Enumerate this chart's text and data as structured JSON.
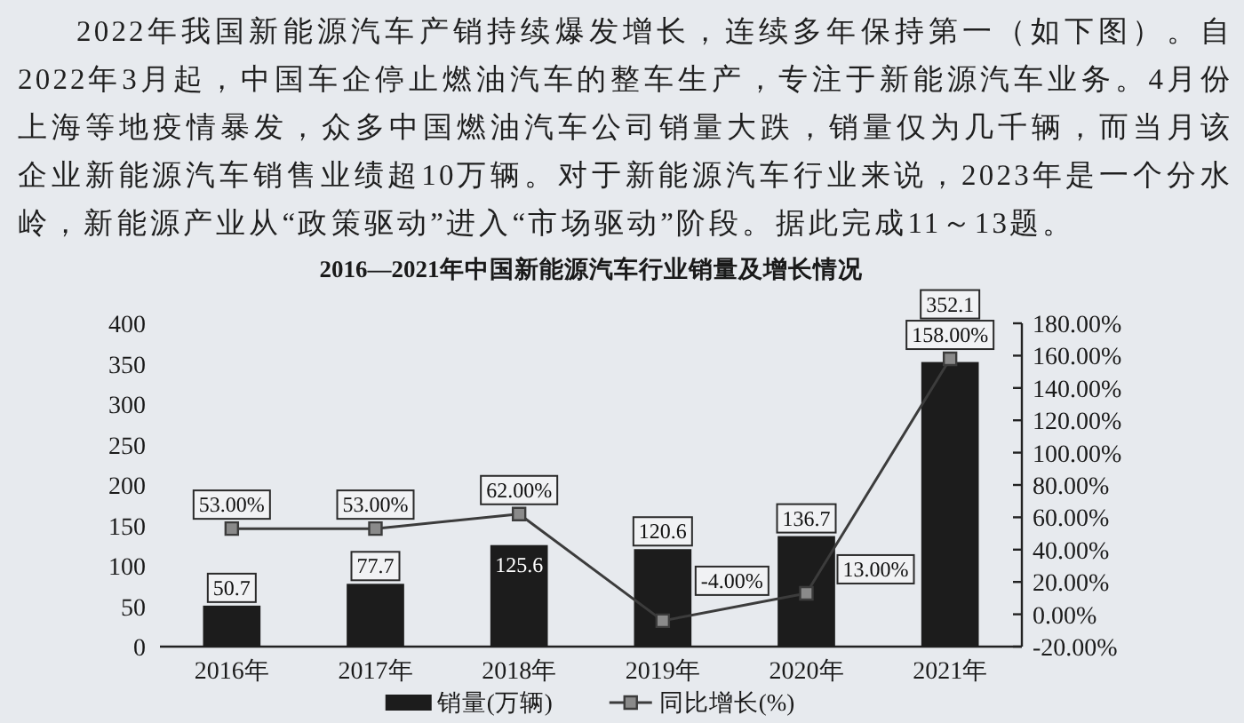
{
  "chart_data": {
    "type": "bar",
    "title": "2016—2021年中国新能源汽车行业销量及增长情况",
    "annotations": [
      "2022年我国新能源汽车产销持续爆发增长，连续多年保持第一（如下图）。自2022年3月起，中国车企停止燃油汽车的整车生产，专注于新能源汽车业务。4月份上海等地疫情暴发，众多中国燃油汽车公司销量大跌，销量仅为几千辆，而当月该企业新能源汽车销售业绩超10万辆。对于新能源汽车行业来说，2023年是一个分水岭，新能源产业从“政策驱动”进入“市场驱动”阶段。据此完成11～13题。"
    ],
    "categories": [
      "2016年",
      "2017年",
      "2018年",
      "2019年",
      "2020年",
      "2021年"
    ],
    "series": [
      {
        "name": "销量(万辆)",
        "type": "bar",
        "color": "#1c1c1c",
        "values": [
          50.7,
          77.7,
          125.6,
          120.6,
          136.7,
          352.1
        ],
        "value_labels": [
          "50.7",
          "77.7",
          "125.6",
          "120.6",
          "136.7",
          "352.1"
        ]
      },
      {
        "name": "同比增长(%)",
        "type": "line",
        "axis": "y2",
        "color": "#3c3c3c",
        "values": [
          53,
          53,
          62,
          -4,
          13,
          158
        ],
        "value_labels": [
          "53.00%",
          "53.00%",
          "62.00%",
          "-4.00%",
          "13.00%",
          "158.00%"
        ]
      }
    ],
    "ylim": [
      0,
      400
    ],
    "yticks": [
      0,
      50,
      100,
      150,
      200,
      250,
      300,
      350,
      400
    ],
    "y2lim": [
      -20,
      180
    ],
    "y2ticks": [
      {
        "value": -20,
        "label": "-20.00%"
      },
      {
        "value": 0,
        "label": "0.00%"
      },
      {
        "value": 20,
        "label": "20.00%"
      },
      {
        "value": 40,
        "label": "40.00%"
      },
      {
        "value": 60,
        "label": "60.00%"
      },
      {
        "value": 80,
        "label": "80.00%"
      },
      {
        "value": 100,
        "label": "100.00%"
      },
      {
        "value": 120,
        "label": "120.00%"
      },
      {
        "value": 140,
        "label": "140.00%"
      },
      {
        "value": 160,
        "label": "160.00%"
      },
      {
        "value": 180,
        "label": "180.00%"
      }
    ],
    "marker": "square",
    "legend": "bottom"
  }
}
